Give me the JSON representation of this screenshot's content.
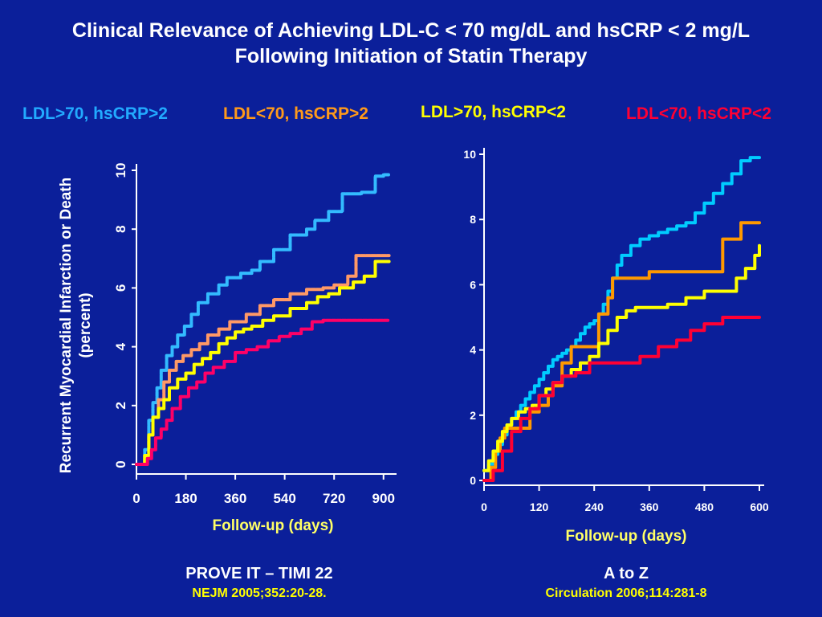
{
  "title": {
    "line1": "Clinical Relevance of Achieving LDL-C < 70 mg/dL and hsCRP < 2 mg/L",
    "line2": "Following Initiation of Statin Therapy"
  },
  "legend": [
    {
      "label": "LDL>70, hsCRP>2",
      "color": "#00aaff"
    },
    {
      "label": "LDL<70, hsCRP>2",
      "color": "#ff9a1a"
    },
    {
      "label": "LDL>70, hsCRP<2",
      "color": "#ffff00"
    },
    {
      "label": "LDL<70, hsCRP<2",
      "color": "#ff0033"
    }
  ],
  "footers": [
    {
      "study": "PROVE IT – TIMI 22",
      "reference": "NEJM 2005;352:20-28."
    },
    {
      "study": "A to Z",
      "reference": "Circulation 2006;114:281-8"
    }
  ],
  "chart_data": [
    {
      "type": "line",
      "step": true,
      "ylabel": "Recurrent Myocardial Infarction or  Death (percent)",
      "xlabel": "Follow-up (days)",
      "ylim": [
        0,
        10
      ],
      "xlim": [
        0,
        930
      ],
      "yticks": [
        0,
        2,
        4,
        6,
        8,
        10
      ],
      "xticks": [
        0,
        180,
        360,
        540,
        720,
        900
      ],
      "series": [
        {
          "name": "LDL>70, hsCRP>2",
          "color": "#33bbff",
          "dashed": true,
          "x": [
            0,
            30,
            45,
            60,
            75,
            90,
            110,
            130,
            150,
            175,
            200,
            225,
            260,
            300,
            330,
            380,
            420,
            450,
            500,
            560,
            620,
            650,
            700,
            750,
            820,
            870,
            900,
            920
          ],
          "y": [
            0,
            0.5,
            1.5,
            2.1,
            2.6,
            3.2,
            3.7,
            4.0,
            4.4,
            4.7,
            5.1,
            5.5,
            5.8,
            6.1,
            6.35,
            6.5,
            6.6,
            6.9,
            7.3,
            7.8,
            8.0,
            8.3,
            8.6,
            9.2,
            9.25,
            9.8,
            9.85,
            9.85
          ]
        },
        {
          "name": "LDL<70, hsCRP>2",
          "color": "#ff9966",
          "dashed": true,
          "x": [
            0,
            30,
            45,
            60,
            80,
            100,
            120,
            145,
            170,
            200,
            230,
            260,
            300,
            340,
            400,
            450,
            500,
            560,
            620,
            680,
            720,
            770,
            800,
            890,
            920
          ],
          "y": [
            0,
            0.3,
            1.0,
            1.6,
            2.2,
            2.8,
            3.2,
            3.5,
            3.7,
            3.9,
            4.1,
            4.4,
            4.6,
            4.85,
            5.1,
            5.4,
            5.6,
            5.8,
            5.95,
            6.0,
            6.1,
            6.4,
            7.1,
            7.1,
            7.1
          ]
        },
        {
          "name": "LDL>70, hsCRP<2",
          "color": "#ffff00",
          "dashed": false,
          "x": [
            0,
            30,
            45,
            60,
            80,
            100,
            120,
            150,
            180,
            210,
            240,
            270,
            300,
            330,
            360,
            390,
            420,
            460,
            500,
            560,
            620,
            660,
            700,
            740,
            790,
            830,
            870,
            920
          ],
          "y": [
            0,
            0.3,
            1.0,
            1.6,
            1.9,
            2.2,
            2.6,
            2.9,
            3.1,
            3.4,
            3.6,
            3.8,
            4.1,
            4.3,
            4.5,
            4.6,
            4.7,
            4.9,
            5.05,
            5.3,
            5.5,
            5.7,
            5.8,
            6.0,
            6.2,
            6.4,
            6.9,
            6.9
          ]
        },
        {
          "name": "LDL<70, hsCRP<2",
          "color": "#ff0066",
          "dashed": true,
          "x": [
            0,
            40,
            55,
            70,
            90,
            110,
            130,
            160,
            190,
            220,
            250,
            280,
            320,
            360,
            400,
            440,
            480,
            520,
            560,
            600,
            640,
            680,
            720,
            760,
            800,
            840,
            880,
            920
          ],
          "y": [
            0,
            0.2,
            0.5,
            0.9,
            1.2,
            1.5,
            1.9,
            2.3,
            2.6,
            2.8,
            3.1,
            3.3,
            3.5,
            3.8,
            3.9,
            4.0,
            4.2,
            4.35,
            4.45,
            4.6,
            4.85,
            4.9,
            4.9,
            4.9,
            4.9,
            4.9,
            4.9,
            4.9
          ]
        }
      ]
    },
    {
      "type": "line",
      "step": true,
      "xlabel": "Follow-up (days)",
      "ylim": [
        0,
        10
      ],
      "xlim": [
        0,
        600
      ],
      "yticks": [
        0,
        2,
        4,
        6,
        8,
        10
      ],
      "xticks": [
        0,
        120,
        240,
        360,
        480,
        600
      ],
      "series": [
        {
          "name": "LDL>70, hsCRP>2",
          "color": "#00ccff",
          "dashed": false,
          "x": [
            0,
            10,
            20,
            30,
            40,
            50,
            60,
            70,
            80,
            90,
            100,
            110,
            120,
            130,
            140,
            150,
            160,
            170,
            180,
            190,
            200,
            210,
            220,
            230,
            240,
            250,
            260,
            270,
            280,
            290,
            300,
            320,
            340,
            360,
            380,
            400,
            420,
            440,
            460,
            480,
            500,
            520,
            540,
            560,
            580,
            600
          ],
          "y": [
            0.3,
            0.5,
            0.8,
            1.1,
            1.4,
            1.7,
            1.9,
            2.1,
            2.3,
            2.5,
            2.7,
            2.9,
            3.1,
            3.3,
            3.5,
            3.7,
            3.8,
            3.9,
            4.0,
            4.1,
            4.3,
            4.5,
            4.7,
            4.8,
            4.9,
            5.1,
            5.4,
            5.8,
            6.2,
            6.6,
            6.9,
            7.2,
            7.4,
            7.5,
            7.6,
            7.7,
            7.8,
            7.9,
            8.2,
            8.5,
            8.8,
            9.1,
            9.4,
            9.8,
            9.9,
            9.9
          ]
        },
        {
          "name": "LDL<70, hsCRP>2",
          "color": "#ff9900",
          "dashed": false,
          "x": [
            0,
            15,
            25,
            35,
            45,
            60,
            80,
            100,
            120,
            140,
            150,
            170,
            190,
            210,
            230,
            250,
            270,
            280,
            300,
            330,
            360,
            400,
            450,
            500,
            520,
            560,
            580,
            600
          ],
          "y": [
            0,
            0.4,
            0.9,
            1.3,
            1.6,
            1.6,
            1.6,
            2.1,
            2.3,
            2.6,
            2.9,
            3.6,
            4.1,
            4.1,
            4.1,
            5.1,
            5.6,
            6.2,
            6.2,
            6.2,
            6.4,
            6.4,
            6.4,
            6.4,
            7.4,
            7.9,
            7.9,
            7.9
          ]
        },
        {
          "name": "LDL>70, hsCRP<2",
          "color": "#ffff00",
          "dashed": false,
          "x": [
            0,
            10,
            20,
            30,
            40,
            50,
            60,
            75,
            90,
            105,
            120,
            135,
            150,
            170,
            190,
            210,
            230,
            250,
            270,
            290,
            310,
            330,
            360,
            400,
            440,
            480,
            520,
            550,
            570,
            590,
            600
          ],
          "y": [
            0.3,
            0.6,
            0.9,
            1.2,
            1.5,
            1.7,
            1.9,
            2.1,
            2.2,
            2.3,
            2.6,
            2.8,
            3.0,
            3.2,
            3.4,
            3.6,
            3.8,
            4.2,
            4.6,
            5.0,
            5.2,
            5.3,
            5.3,
            5.4,
            5.6,
            5.8,
            5.8,
            6.2,
            6.5,
            6.9,
            7.2
          ]
        },
        {
          "name": "LDL<70, hsCRP<2",
          "color": "#ff0033",
          "dashed": false,
          "x": [
            0,
            20,
            40,
            60,
            80,
            100,
            120,
            150,
            170,
            200,
            230,
            260,
            300,
            340,
            380,
            410,
            420,
            450,
            480,
            500,
            520,
            540,
            560,
            600
          ],
          "y": [
            0,
            0.3,
            0.9,
            1.5,
            1.9,
            2.2,
            2.6,
            3.0,
            3.2,
            3.3,
            3.6,
            3.6,
            3.6,
            3.8,
            4.1,
            4.1,
            4.3,
            4.6,
            4.8,
            4.8,
            5.0,
            5.0,
            5.0,
            5.0
          ]
        }
      ]
    }
  ]
}
